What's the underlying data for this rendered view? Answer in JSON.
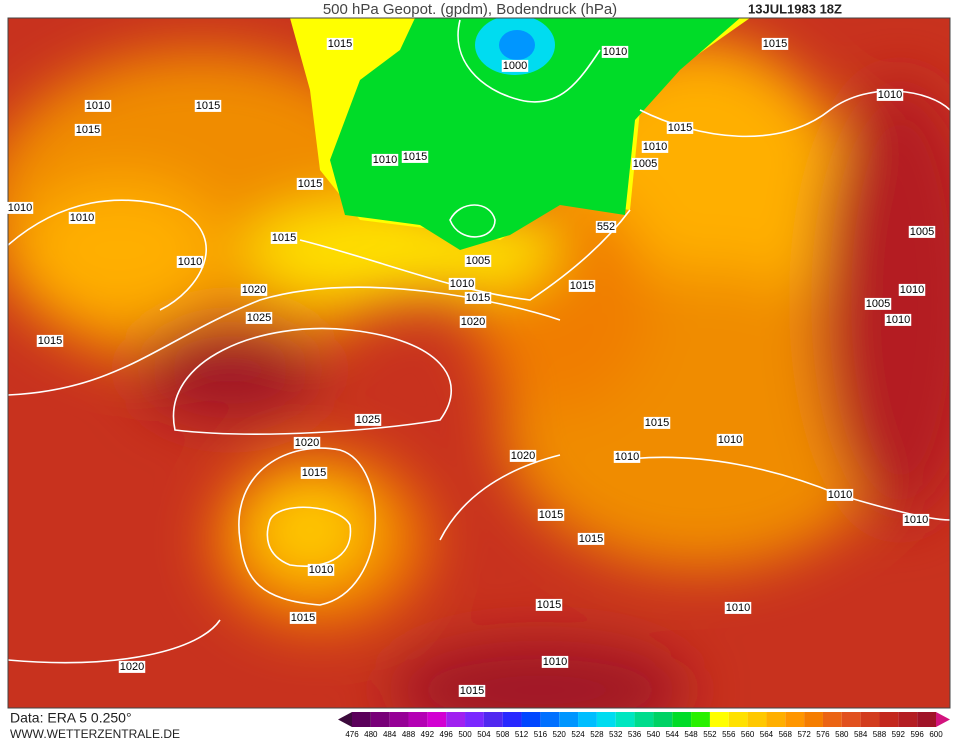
{
  "header": {
    "title": "500 hPa Geopot. (gpdm), Bodendruck (hPa)",
    "date": "13JUL1983 18Z"
  },
  "footer": {
    "source": "Data: ERA 5 0.250°",
    "website": "WWW.WETTERZENTRALE.DE"
  },
  "legend": {
    "labels": [
      476,
      480,
      484,
      488,
      492,
      496,
      500,
      504,
      508,
      512,
      516,
      520,
      524,
      528,
      532,
      536,
      540,
      544,
      548,
      552,
      556,
      560,
      564,
      568,
      572,
      576,
      580,
      584,
      588,
      592,
      596,
      600
    ],
    "colors": [
      "#3c0a3c",
      "#5a005a",
      "#780078",
      "#960096",
      "#b400b4",
      "#d200d2",
      "#a020f0",
      "#7a28ff",
      "#5028f0",
      "#2828ff",
      "#0046ff",
      "#0070ff",
      "#0096ff",
      "#00beff",
      "#00dcf0",
      "#00e6c0",
      "#00dc8c",
      "#00d264",
      "#00dc28",
      "#28f000",
      "#ffff00",
      "#ffe100",
      "#ffc800",
      "#ffaf00",
      "#ff9600",
      "#f57d00",
      "#eb6414",
      "#e1501e",
      "#d23c1e",
      "#c3281e",
      "#b41e23",
      "#a01428",
      "#d2147d"
    ]
  },
  "isobar_labels": [
    "1015",
    "1010",
    "1015",
    "1015",
    "1000",
    "1010",
    "1015",
    "1010",
    "1015",
    "1005",
    "1010",
    "1015",
    "1015",
    "1010",
    "1010",
    "1005",
    "1010",
    "1020",
    "1025",
    "1015",
    "1005",
    "1010",
    "1015",
    "1020",
    "1015",
    "1010",
    "1005",
    "1010",
    "1010",
    "1025",
    "1020",
    "1015",
    "1010",
    "1020",
    "1015",
    "1015",
    "1010",
    "1015",
    "1010",
    "1015",
    "1010",
    "1015",
    "1010",
    "1020",
    "552",
    "1010",
    "1015",
    "1015",
    "1010"
  ]
}
